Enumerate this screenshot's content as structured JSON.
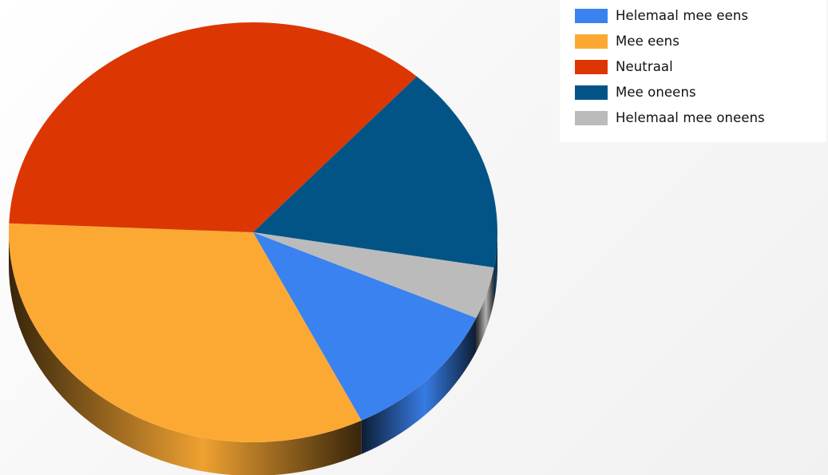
{
  "chart_data": {
    "type": "pie",
    "style": "3d",
    "categories": [
      "Helemaal mee eens",
      "Mee eens",
      "Neutraal",
      "Mee oneens",
      "Helemaal mee oneens"
    ],
    "values": [
      11,
      33,
      36,
      16,
      4
    ],
    "colors": [
      "#3a82f0",
      "#fca934",
      "#dc3703",
      "#035486",
      "#bbbbbb"
    ],
    "legend": {
      "position": "top-right",
      "entries": [
        "Helemaal mee eens",
        "Mee eens",
        "Neutraal",
        "Mee oneens",
        "Helemaal mee oneens"
      ]
    },
    "title": ""
  }
}
